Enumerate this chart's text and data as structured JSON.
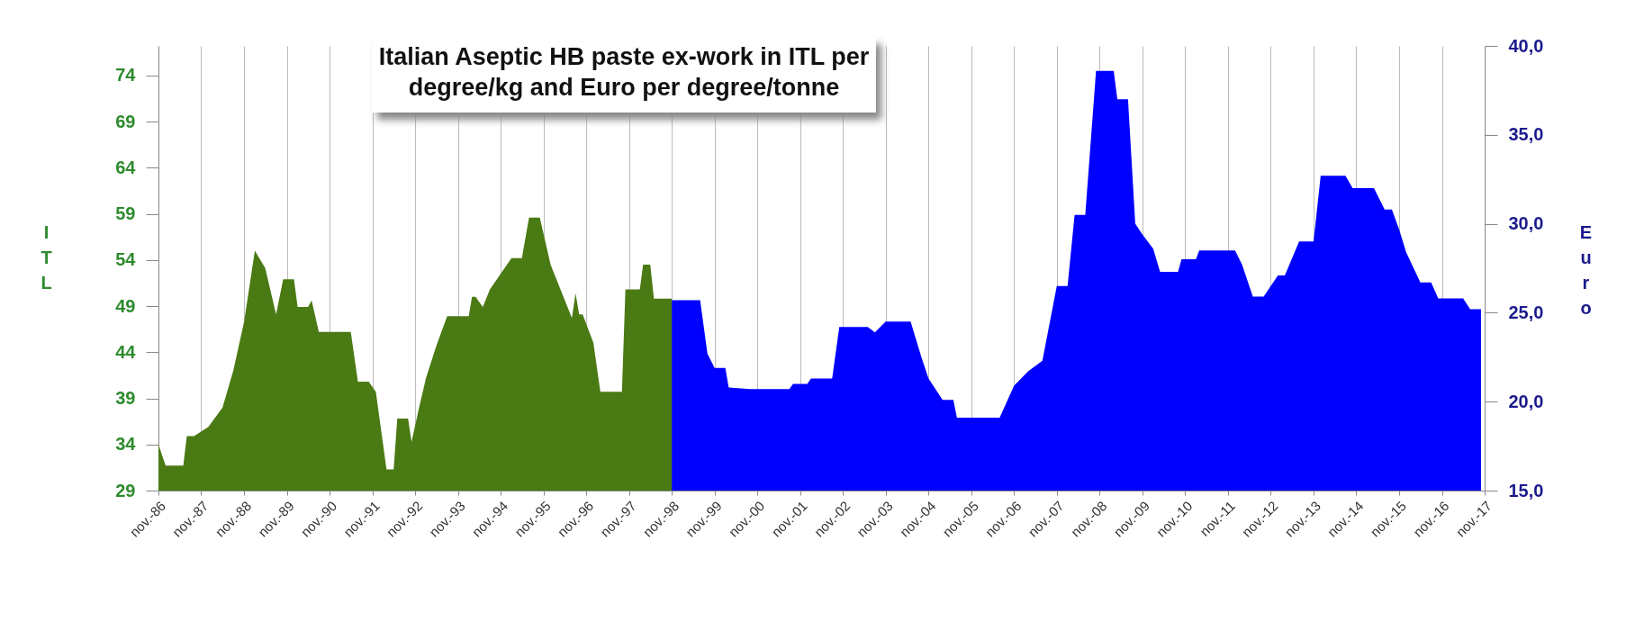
{
  "chart_data": {
    "type": "area",
    "title": "Italian Aseptic HB paste ex-work in ITL per degree/kg and Euro per degree/tonne",
    "ylabel": "ITL",
    "y2label": "Euro",
    "xlim": [
      "1986-11",
      "2017-11"
    ],
    "xticks": [
      {
        "value": "1986-11",
        "label": "nov.-86"
      },
      {
        "value": "1987-11",
        "label": "nov.-87"
      },
      {
        "value": "1988-11",
        "label": "nov.-88"
      },
      {
        "value": "1989-11",
        "label": "nov.-89"
      },
      {
        "value": "1990-11",
        "label": "nov.-90"
      },
      {
        "value": "1991-11",
        "label": "nov.-91"
      },
      {
        "value": "1992-11",
        "label": "nov.-92"
      },
      {
        "value": "1993-11",
        "label": "nov.-93"
      },
      {
        "value": "1994-11",
        "label": "nov.-94"
      },
      {
        "value": "1995-11",
        "label": "nov.-95"
      },
      {
        "value": "1996-11",
        "label": "nov.-96"
      },
      {
        "value": "1997-11",
        "label": "nov.-97"
      },
      {
        "value": "1998-11",
        "label": "nov.-98"
      },
      {
        "value": "1999-11",
        "label": "nov.-99"
      },
      {
        "value": "2000-11",
        "label": "nov.-00"
      },
      {
        "value": "2001-11",
        "label": "nov.-01"
      },
      {
        "value": "2002-11",
        "label": "nov.-02"
      },
      {
        "value": "2003-11",
        "label": "nov.-03"
      },
      {
        "value": "2004-11",
        "label": "nov.-04"
      },
      {
        "value": "2005-11",
        "label": "nov.-05"
      },
      {
        "value": "2006-11",
        "label": "nov.-06"
      },
      {
        "value": "2007-11",
        "label": "nov.-07"
      },
      {
        "value": "2008-11",
        "label": "nov.-08"
      },
      {
        "value": "2009-11",
        "label": "nov.-09"
      },
      {
        "value": "2010-11",
        "label": "nov.-10"
      },
      {
        "value": "2011-11",
        "label": "nov.-11"
      },
      {
        "value": "2012-11",
        "label": "nov.-12"
      },
      {
        "value": "2013-11",
        "label": "nov.-13"
      },
      {
        "value": "2014-11",
        "label": "nov.-14"
      },
      {
        "value": "2015-11",
        "label": "nov.-15"
      },
      {
        "value": "2016-11",
        "label": "nov.-16"
      },
      {
        "value": "2017-11",
        "label": "nov.-17"
      }
    ],
    "ylim": [
      29,
      77.2
    ],
    "yticks": [
      29,
      34,
      39,
      44,
      49,
      54,
      59,
      64,
      69,
      74
    ],
    "y2lim": [
      15,
      40
    ],
    "y2ticks": [
      {
        "value": 15,
        "label": "15,0"
      },
      {
        "value": 20,
        "label": "20,0"
      },
      {
        "value": 25,
        "label": "25,0"
      },
      {
        "value": 30,
        "label": "30,0"
      },
      {
        "value": 35,
        "label": "35,0"
      },
      {
        "value": 40,
        "label": "40,0"
      }
    ],
    "grid": "x",
    "series": [
      {
        "color": "#4a7a14",
        "x": [
          "1986-11",
          "1987-01",
          "1987-06",
          "1987-07",
          "1987-09",
          "1988-01",
          "1988-05",
          "1988-08",
          "1988-11",
          "1989-02",
          "1989-05",
          "1989-08",
          "1989-10",
          "1990-01",
          "1990-02",
          "1990-05",
          "1990-06",
          "1990-08",
          "1991-05",
          "1991-07",
          "1991-10",
          "1991-12",
          "1992-03",
          "1992-05",
          "1992-06",
          "1992-09",
          "1992-10",
          "1992-12",
          "1993-02",
          "1993-05",
          "1993-08",
          "1994-02",
          "1994-03",
          "1994-04",
          "1994-06",
          "1994-08",
          "1995-02",
          "1995-05",
          "1995-07",
          "1995-10",
          "1996-01",
          "1996-07",
          "1996-08",
          "1996-09",
          "1996-10",
          "1997-01",
          "1997-03",
          "1997-09",
          "1997-10",
          "1998-02",
          "1998-03",
          "1998-05",
          "1998-06",
          "1998-11"
        ],
        "values": [
          34.0,
          31.7,
          31.7,
          34.9,
          34.9,
          35.9,
          38.0,
          42.0,
          47.3,
          55.0,
          53.1,
          48.1,
          51.9,
          51.9,
          48.9,
          48.9,
          49.6,
          46.2,
          46.2,
          40.8,
          40.8,
          39.7,
          31.3,
          31.3,
          36.8,
          36.8,
          34.3,
          37.8,
          41.2,
          44.7,
          47.9,
          47.9,
          50.0,
          50.0,
          48.9,
          50.8,
          54.2,
          54.2,
          58.6,
          58.6,
          53.5,
          47.7,
          50.4,
          48.1,
          48.1,
          45.0,
          39.7,
          39.7,
          50.8,
          50.8,
          53.5,
          53.5,
          49.8,
          49.8
        ]
      },
      {
        "color": "#0000ff",
        "axis": "y2",
        "x": [
          "1998-11",
          "1999-07",
          "1999-09",
          "1999-11",
          "2000-02",
          "2000-03",
          "2000-09",
          "2001-08",
          "2001-09",
          "2002-01",
          "2002-02",
          "2002-08",
          "2002-10",
          "2003-06",
          "2003-08",
          "2003-11",
          "2004-06",
          "2004-09",
          "2004-11",
          "2005-03",
          "2005-06",
          "2005-07",
          "2006-07",
          "2006-11",
          "2007-03",
          "2007-07",
          "2007-11",
          "2008-02",
          "2008-04",
          "2008-07",
          "2008-10",
          "2009-03",
          "2009-04",
          "2009-07",
          "2009-09",
          "2009-11",
          "2010-02",
          "2010-04",
          "2010-09",
          "2010-10",
          "2011-02",
          "2011-03",
          "2012-01",
          "2012-03",
          "2012-06",
          "2012-09",
          "2013-01",
          "2013-03",
          "2013-07",
          "2013-11",
          "2014-01",
          "2014-08",
          "2014-10",
          "2015-04",
          "2015-07",
          "2015-09",
          "2015-11",
          "2016-01",
          "2016-05",
          "2016-08",
          "2016-10",
          "2017-05",
          "2017-07",
          "2017-10"
        ],
        "values": [
          25.7,
          25.7,
          22.7,
          21.9,
          21.9,
          20.8,
          20.7,
          20.7,
          21.0,
          21.0,
          21.3,
          21.3,
          24.2,
          24.2,
          23.9,
          24.5,
          24.5,
          22.5,
          21.3,
          20.1,
          20.1,
          19.1,
          19.1,
          20.9,
          21.7,
          22.3,
          26.5,
          26.5,
          30.5,
          30.5,
          38.6,
          38.6,
          37.0,
          37.0,
          30.0,
          29.4,
          28.6,
          27.3,
          27.3,
          28.0,
          28.0,
          28.5,
          28.5,
          27.7,
          25.9,
          25.9,
          27.1,
          27.1,
          29.0,
          29.0,
          32.7,
          32.7,
          32.0,
          32.0,
          30.8,
          30.8,
          29.7,
          28.4,
          26.7,
          26.7,
          25.8,
          25.8,
          25.2,
          25.2
        ]
      }
    ]
  }
}
